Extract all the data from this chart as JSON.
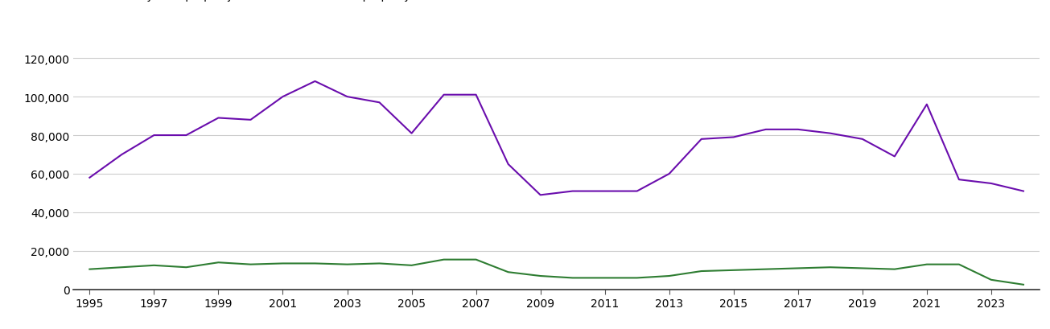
{
  "years": [
    1995,
    1996,
    1997,
    1998,
    1999,
    2000,
    2001,
    2002,
    2003,
    2004,
    2005,
    2006,
    2007,
    2008,
    2009,
    2010,
    2011,
    2012,
    2013,
    2014,
    2015,
    2016,
    2017,
    2018,
    2019,
    2020,
    2021,
    2022,
    2023,
    2024
  ],
  "new_homes": [
    10500,
    11500,
    12500,
    11500,
    14000,
    13000,
    13500,
    13500,
    13000,
    13500,
    12500,
    15500,
    15500,
    9000,
    7000,
    6000,
    6000,
    6000,
    7000,
    9500,
    10000,
    10500,
    11000,
    11500,
    11000,
    10500,
    13000,
    13000,
    5000,
    2500
  ],
  "established_homes": [
    58000,
    70000,
    80000,
    80000,
    89000,
    88000,
    100000,
    108000,
    100000,
    97000,
    81000,
    101000,
    101000,
    65000,
    49000,
    51000,
    51000,
    51000,
    60000,
    78000,
    79000,
    83000,
    83000,
    81000,
    78000,
    69000,
    96000,
    57000,
    55000,
    51000
  ],
  "new_homes_color": "#2e7d32",
  "established_homes_color": "#6a0dad",
  "ylim": [
    0,
    130000
  ],
  "yticks": [
    0,
    20000,
    40000,
    60000,
    80000,
    100000,
    120000
  ],
  "xtick_years": [
    1995,
    1997,
    1999,
    2001,
    2003,
    2005,
    2007,
    2009,
    2011,
    2013,
    2015,
    2017,
    2019,
    2021,
    2023
  ],
  "background_color": "#ffffff",
  "grid_color": "#cccccc",
  "line_width": 1.5,
  "tick_fontsize": 10,
  "legend_fontsize": 10
}
